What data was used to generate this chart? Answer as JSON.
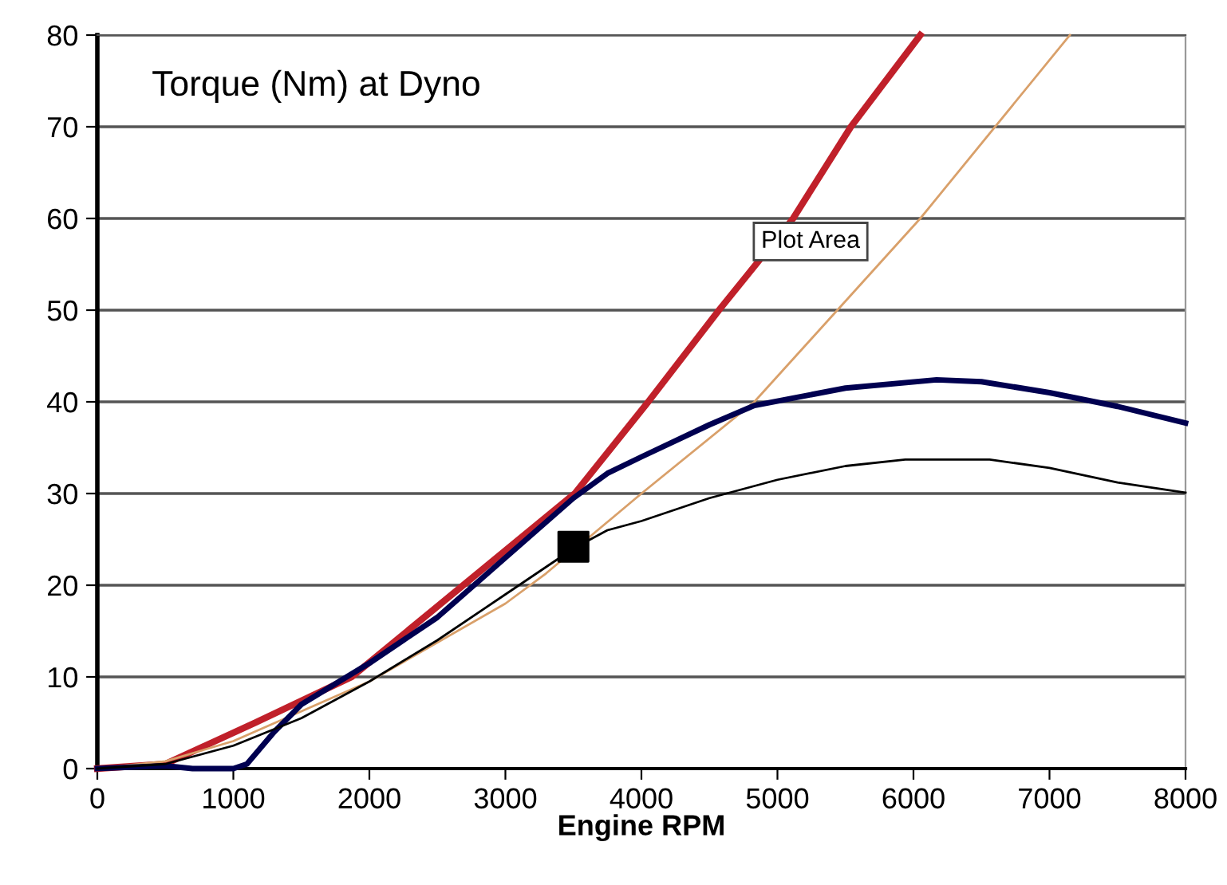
{
  "chart_data": {
    "type": "line",
    "title": "Torque (Nm) at Dyno",
    "xlabel": "Engine RPM",
    "xlim": [
      0,
      8000
    ],
    "xticks": [
      0,
      1000,
      2000,
      3000,
      4000,
      5000,
      6000,
      7000,
      8000
    ],
    "ylim": [
      0,
      80
    ],
    "yticks": [
      0,
      10,
      20,
      30,
      40,
      50,
      60,
      70,
      80
    ],
    "grid": "y",
    "legend": false,
    "annotations": [
      "Plot Area"
    ],
    "series": [
      {
        "color": "#c0202a",
        "x": [
          0,
          500,
          1160,
          1870,
          2690,
          3510,
          4050,
          4570,
          5115,
          5540,
          6050
        ],
        "values": [
          0,
          0.5,
          5,
          10,
          20,
          30,
          40,
          50,
          60,
          70,
          80
        ]
      },
      {
        "color": "#d9a06a",
        "x": [
          0,
          500,
          1000,
          2000,
          3000,
          3300,
          4000,
          4830,
          6050,
          7150
        ],
        "values": [
          0,
          0.8,
          3,
          9.5,
          18,
          21.3,
          30,
          40,
          60,
          80
        ]
      },
      {
        "color": "#000050",
        "x": [
          0,
          500,
          700,
          1000,
          1100,
          1300,
          1500,
          2000,
          2500,
          3000,
          3500,
          3750,
          4000,
          4500,
          4830,
          5500,
          6170,
          6500,
          7000,
          7500,
          8000
        ],
        "values": [
          0,
          0.3,
          0,
          0,
          0.5,
          4,
          7,
          11.5,
          16.5,
          23,
          29.5,
          32.2,
          34,
          37.5,
          39.6,
          41.5,
          42.4,
          42.2,
          41,
          39.5,
          37.7
        ]
      },
      {
        "color": "#000000",
        "x": [
          0,
          500,
          1000,
          1500,
          2000,
          2500,
          3000,
          3500,
          3750,
          4000,
          4500,
          5000,
          5500,
          5940,
          6560,
          7000,
          7500,
          8000
        ],
        "values": [
          0,
          0.5,
          2.5,
          5.5,
          9.5,
          14,
          19,
          24,
          26,
          27,
          29.5,
          31.5,
          33,
          33.7,
          33.7,
          32.8,
          31.2,
          30.1
        ]
      },
      {
        "type": "scatter",
        "color": "#000000",
        "marker": "square",
        "x": [
          3500
        ],
        "values": [
          24.2
        ]
      }
    ]
  }
}
